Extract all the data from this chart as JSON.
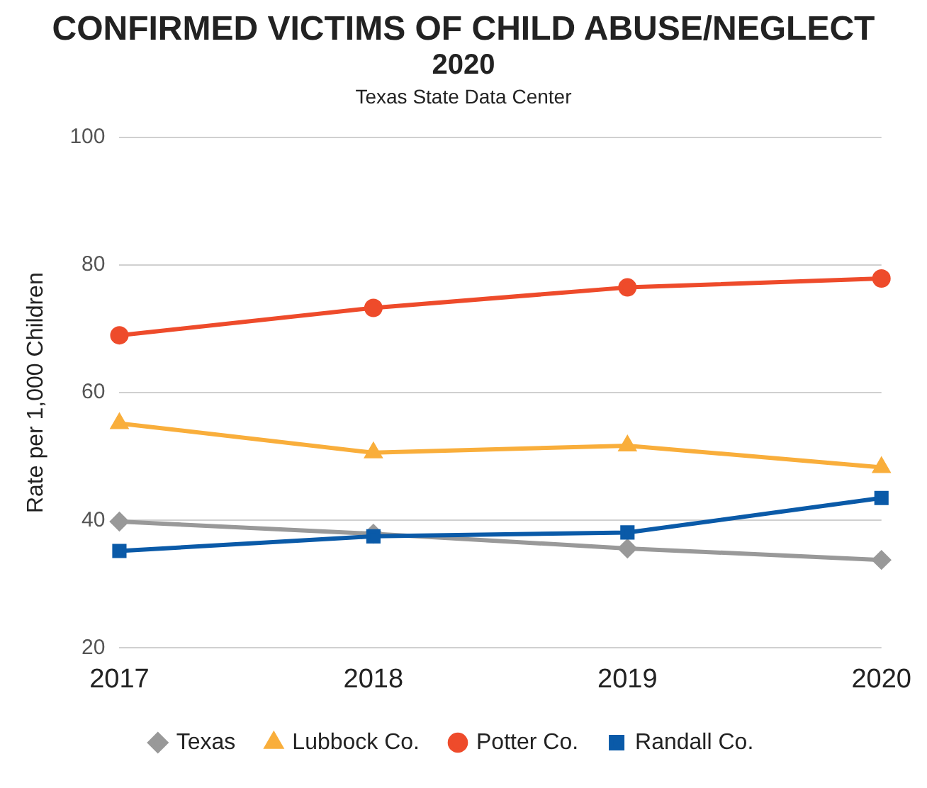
{
  "chart_data": {
    "type": "line",
    "title": "CONFIRMED VICTIMS OF CHILD ABUSE/NEGLECT",
    "subtitle": "2020",
    "annotations": [
      "Texas State Data Center"
    ],
    "ylabel": "Rate per 1,000 Children",
    "categories": [
      "2017",
      "2018",
      "2019",
      "2020"
    ],
    "ylim": [
      20,
      100
    ],
    "yticks": [
      20,
      40,
      60,
      80,
      100
    ],
    "grid": "y",
    "legend": "bottom",
    "series": [
      {
        "name": "Texas",
        "color": "#999999",
        "marker": "diamond",
        "values": [
          39.8,
          37.9,
          35.6,
          33.8
        ]
      },
      {
        "name": "Lubbock Co.",
        "color": "#f9ae3b",
        "marker": "triangle",
        "values": [
          55.2,
          50.6,
          51.7,
          48.3
        ]
      },
      {
        "name": "Potter Co.",
        "color": "#ee4b2b",
        "marker": "circle",
        "values": [
          69.0,
          73.3,
          76.5,
          77.9
        ]
      },
      {
        "name": "Randall Co.",
        "color": "#0a5aa8",
        "marker": "square",
        "values": [
          35.2,
          37.5,
          38.1,
          43.5
        ]
      }
    ]
  }
}
